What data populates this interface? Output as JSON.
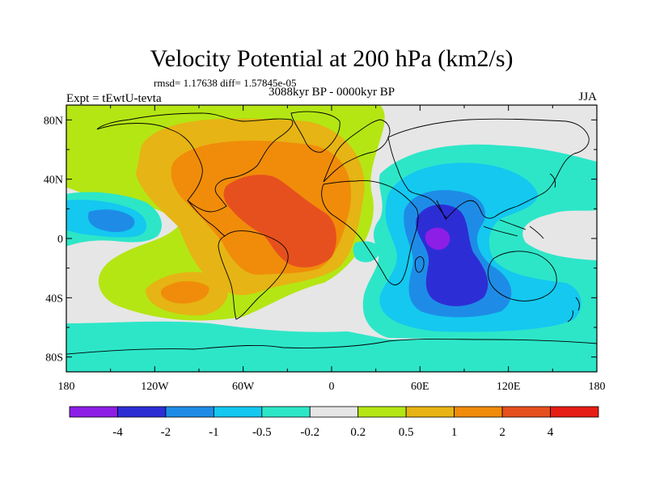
{
  "title": "Velocity Potential at 200 hPa (km2/s)",
  "stats": "rmsd= 1.17638 diff= 1.57845e-05",
  "left_label": "Expt = tEwtU-tevta",
  "center_label": "3088kyr BP - 0000kyr BP",
  "right_label": "JJA",
  "lat_ticks": [
    {
      "label": "80N",
      "value": 80
    },
    {
      "label": "40N",
      "value": 40
    },
    {
      "label": "0",
      "value": 0
    },
    {
      "label": "40S",
      "value": -40
    },
    {
      "label": "80S",
      "value": -80
    }
  ],
  "lon_ticks": [
    {
      "label": "180",
      "value": -180
    },
    {
      "label": "120W",
      "value": -120
    },
    {
      "label": "60W",
      "value": -60
    },
    {
      "label": "0",
      "value": 0
    },
    {
      "label": "60E",
      "value": 60
    },
    {
      "label": "120E",
      "value": 120
    },
    {
      "label": "180",
      "value": 180
    }
  ],
  "lon_range": [
    -180,
    180
  ],
  "lat_range": [
    -90,
    90
  ],
  "colorbar": {
    "colors": [
      "#8c1ee6",
      "#2d2dd6",
      "#1e8ce6",
      "#14c8f0",
      "#2de6c8",
      "#e6e6e6",
      "#b4e614",
      "#e6b414",
      "#f08c0a",
      "#e6501e",
      "#e61e14"
    ],
    "labels": [
      "-4",
      "-2",
      "-1",
      "-0.5",
      "-0.2",
      "0.2",
      "0.5",
      "1",
      "2",
      "4"
    ]
  },
  "palette": {
    "n4": "#8c1ee6",
    "n2": "#2d2dd6",
    "n1": "#1e8ce6",
    "n05": "#14c8f0",
    "n02": "#2de6c8",
    "z": "#e6e6e6",
    "p02": "#b4e614",
    "p05": "#e6b414",
    "p1": "#f08c0a",
    "p2": "#e6501e",
    "p4": "#e61e14"
  }
}
